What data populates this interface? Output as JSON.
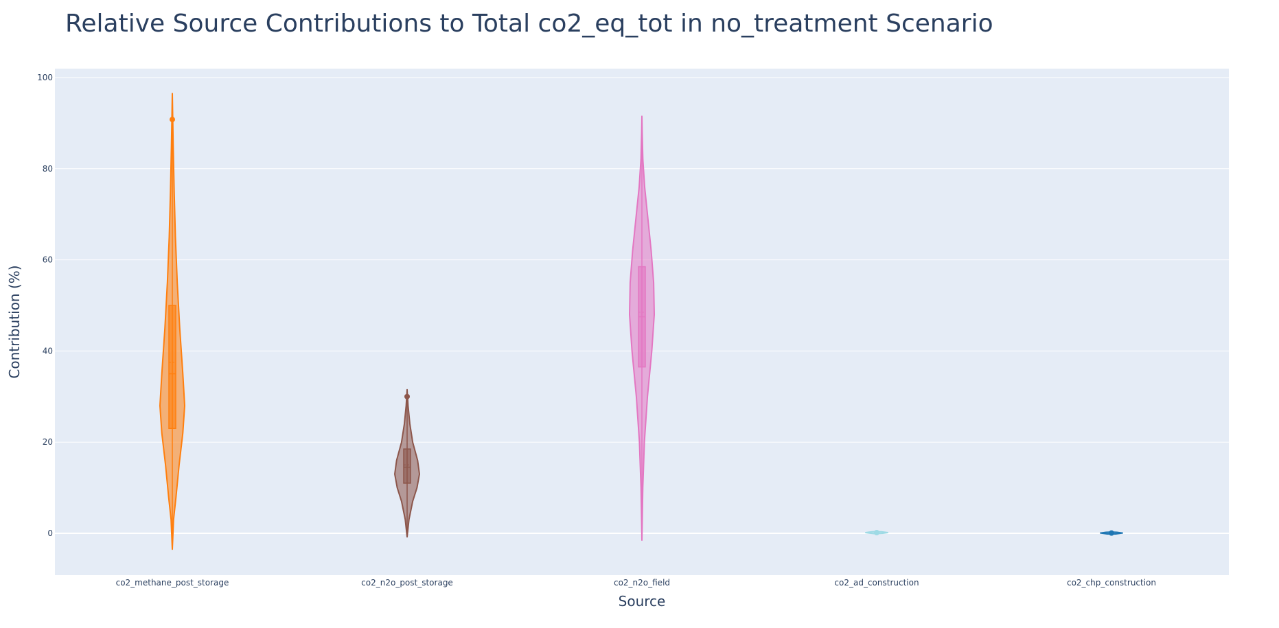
{
  "chart_data": {
    "type": "violin",
    "title": "Relative Source Contributions to Total co2_eq_tot in no_treatment Scenario",
    "xlabel": "Source",
    "ylabel": "Contribution (%)",
    "ylim": [
      -9,
      102
    ],
    "yticks": [
      0,
      20,
      40,
      60,
      80,
      100
    ],
    "grid": true,
    "legend": "none",
    "categories": [
      "co2_methane_post_storage",
      "co2_n2o_post_storage",
      "co2_n2o_field",
      "co2_ad_construction",
      "co2_chp_construction"
    ],
    "series": [
      {
        "category": "co2_methane_post_storage",
        "color": "#ff7f0e",
        "min": -3.5,
        "max": 96.5,
        "q1": 23,
        "median": 35,
        "mean": 37.5,
        "q3": 50,
        "outliers": [
          90.8
        ],
        "density_profile": [
          [
            -3.5,
            0.0
          ],
          [
            3,
            0.1
          ],
          [
            8,
            0.3
          ],
          [
            15,
            0.55
          ],
          [
            22,
            0.85
          ],
          [
            28,
            1.0
          ],
          [
            35,
            0.85
          ],
          [
            45,
            0.6
          ],
          [
            55,
            0.4
          ],
          [
            65,
            0.25
          ],
          [
            75,
            0.15
          ],
          [
            85,
            0.07
          ],
          [
            92,
            0.03
          ],
          [
            96.5,
            0.0
          ]
        ]
      },
      {
        "category": "co2_n2o_post_storage",
        "color": "#8c564b",
        "min": -0.8,
        "max": 31.5,
        "q1": 11,
        "median": 14.5,
        "mean": 15,
        "q3": 18.5,
        "outliers": [
          30
        ],
        "density_profile": [
          [
            -0.8,
            0.0
          ],
          [
            3,
            0.15
          ],
          [
            7,
            0.45
          ],
          [
            10,
            0.8
          ],
          [
            13,
            1.0
          ],
          [
            16,
            0.85
          ],
          [
            20,
            0.45
          ],
          [
            24,
            0.22
          ],
          [
            28,
            0.08
          ],
          [
            31.5,
            0.0
          ]
        ]
      },
      {
        "category": "co2_n2o_field",
        "color": "#e377c2",
        "min": -1.5,
        "max": 91.5,
        "q1": 36.5,
        "median": 47.5,
        "mean": 48.5,
        "q3": 58.5,
        "outliers": [],
        "density_profile": [
          [
            -1.5,
            0.0
          ],
          [
            10,
            0.07
          ],
          [
            20,
            0.2
          ],
          [
            30,
            0.45
          ],
          [
            40,
            0.8
          ],
          [
            48,
            1.0
          ],
          [
            55,
            0.95
          ],
          [
            62,
            0.75
          ],
          [
            70,
            0.45
          ],
          [
            76,
            0.22
          ],
          [
            82,
            0.08
          ],
          [
            88,
            0.02
          ],
          [
            91.5,
            0.0
          ]
        ]
      },
      {
        "category": "co2_ad_construction",
        "color": "#9edae5",
        "min": -0.1,
        "max": 0.4,
        "q1": 0.05,
        "median": 0.15,
        "mean": 0.15,
        "q3": 0.25,
        "outliers": [
          0.15
        ],
        "density_profile": [
          [
            -0.1,
            0.0
          ],
          [
            0.15,
            1.0
          ],
          [
            0.4,
            0.0
          ]
        ]
      },
      {
        "category": "co2_chp_construction",
        "color": "#1f77b4",
        "min": -0.1,
        "max": 0.2,
        "q1": 0.0,
        "median": 0.05,
        "mean": 0.05,
        "q3": 0.1,
        "outliers": [
          0.05
        ],
        "density_profile": [
          [
            -0.1,
            0.0
          ],
          [
            0.05,
            1.0
          ],
          [
            0.2,
            0.0
          ]
        ]
      }
    ]
  }
}
